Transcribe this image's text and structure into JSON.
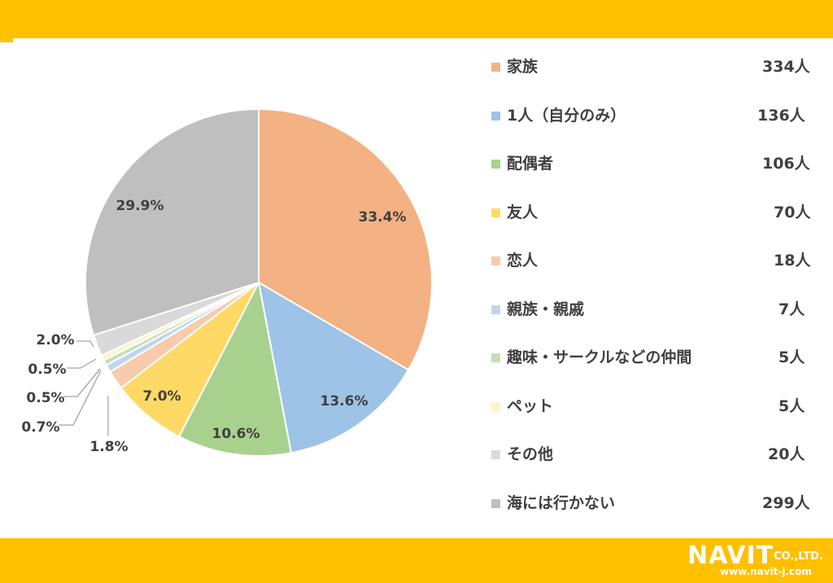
{
  "chart_data": {
    "type": "pie",
    "title": "",
    "slices": [
      {
        "label": "家族",
        "count": "334人",
        "value": 33.4,
        "percent_label": "33.4%",
        "color": "#F4B183"
      },
      {
        "label": "1人（自分のみ）",
        "count": "136人",
        "value": 13.6,
        "percent_label": "13.6%",
        "color": "#9DC3E6"
      },
      {
        "label": "配偶者",
        "count": "106人",
        "value": 10.6,
        "percent_label": "10.6%",
        "color": "#A9D18E"
      },
      {
        "label": "友人",
        "count": "70人",
        "value": 7.0,
        "percent_label": "7.0%",
        "color": "#FFD966"
      },
      {
        "label": "恋人",
        "count": "18人",
        "value": 1.8,
        "percent_label": "1.8%",
        "color": "#F8CBAD"
      },
      {
        "label": "親族・親戚",
        "count": "7人",
        "value": 0.7,
        "percent_label": "0.7%",
        "color": "#BDD7EE"
      },
      {
        "label": "趣味・サークルなどの仲間",
        "count": "5人",
        "value": 0.5,
        "percent_label": "0.5%",
        "color": "#C5E0B4"
      },
      {
        "label": "ペット",
        "count": "5人",
        "value": 0.5,
        "percent_label": "0.5%",
        "color": "#FFF2CC"
      },
      {
        "label": "その他",
        "count": "20人",
        "value": 2.0,
        "percent_label": "2.0%",
        "color": "#D9D9D9"
      },
      {
        "label": "海には行かない",
        "count": "299人",
        "value": 29.9,
        "percent_label": "29.9%",
        "color": "#BFBFBF"
      }
    ],
    "legend_position": "right"
  },
  "logo": {
    "brand": "NAVIT",
    "suffix": "CO.,LTD.",
    "url": "www.navit-j.com"
  },
  "colors": {
    "band": "#FFC000",
    "text": "#404040"
  }
}
